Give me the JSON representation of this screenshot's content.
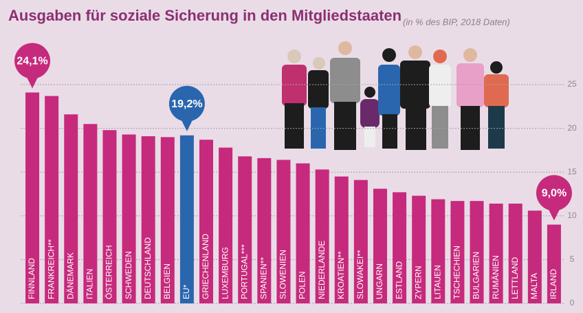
{
  "chart_data": {
    "type": "bar",
    "title": "Ausgaben für soziale Sicherung in den Mitgliedstaaten",
    "subtitle": "(in % des BIP, 2018 Daten)",
    "categories": [
      "FINNLAND",
      "FRANKREICH**",
      "DÄNEMARK",
      "ITALIEN",
      "ÖSTERREICH",
      "SCHWEDEN",
      "DEUTSCHLAND",
      "BELGIEN",
      "EU*",
      "GRIECHENLAND",
      "LUXEMBURG",
      "PORTUGAL***",
      "SPANIEN**",
      "SLOWENIEN",
      "POLEN",
      "NIEDERLANDE",
      "KROATIEN**",
      "SLOWAKEI**",
      "UNGARN",
      "ESTLAND",
      "ZYPERN",
      "LITAUEN",
      "TSCHECHIEN",
      "BULGARIEN",
      "RUMÄNIEN",
      "LETTLAND",
      "MALTA",
      "IRLAND"
    ],
    "values": [
      24.1,
      23.7,
      21.6,
      20.5,
      19.8,
      19.3,
      19.1,
      19.0,
      19.2,
      18.7,
      17.8,
      16.8,
      16.6,
      16.4,
      16.0,
      15.3,
      14.5,
      14.1,
      13.1,
      12.7,
      12.3,
      11.9,
      11.7,
      11.7,
      11.4,
      11.4,
      10.6,
      9.0
    ],
    "value_labels": [
      "24,1%",
      null,
      null,
      null,
      null,
      null,
      null,
      null,
      "19,2%",
      null,
      null,
      null,
      null,
      null,
      null,
      null,
      null,
      null,
      null,
      null,
      null,
      null,
      null,
      null,
      null,
      null,
      null,
      "9,0%"
    ],
    "colors": [
      "#c62a7c",
      "#c62a7c",
      "#c62a7c",
      "#c62a7c",
      "#c62a7c",
      "#c62a7c",
      "#c62a7c",
      "#c62a7c",
      "#2a66ad",
      "#c62a7c",
      "#c62a7c",
      "#c62a7c",
      "#c62a7c",
      "#c62a7c",
      "#c62a7c",
      "#c62a7c",
      "#c62a7c",
      "#c62a7c",
      "#c62a7c",
      "#c62a7c",
      "#c62a7c",
      "#c62a7c",
      "#c62a7c",
      "#c62a7c",
      "#c62a7c",
      "#c62a7c",
      "#c62a7c",
      "#c62a7c"
    ],
    "ylim": [
      0,
      25
    ],
    "yticks": [
      0,
      5,
      10,
      15,
      20,
      25
    ],
    "grid": true
  }
}
